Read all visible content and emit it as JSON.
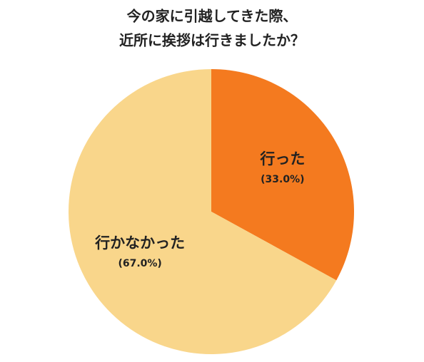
{
  "chart_data": {
    "type": "pie",
    "title": [
      "今の家に引越してきた際、",
      "近所に挨拶は行きましたか？"
    ],
    "categories": [
      "行った",
      "行かなかった"
    ],
    "values": [
      33.0,
      67.0
    ],
    "value_labels": [
      "(33.0%)",
      "(67.0%)"
    ],
    "colors": [
      "#f47a1f",
      "#f9d68b"
    ]
  }
}
